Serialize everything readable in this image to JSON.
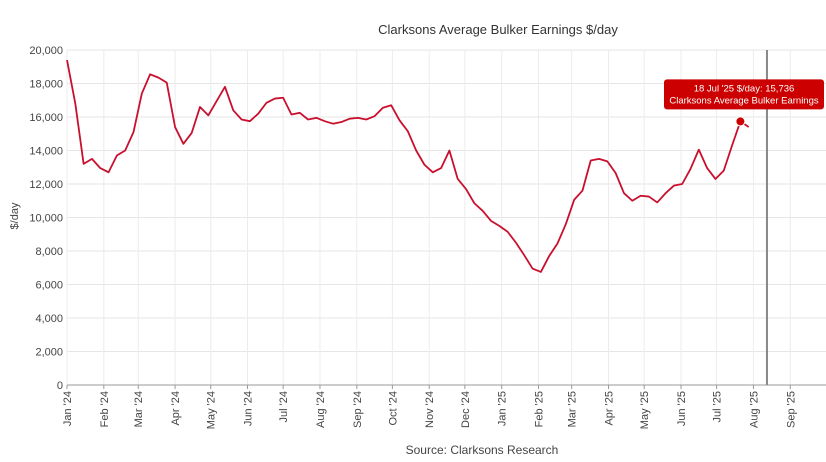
{
  "chart_data": {
    "type": "line",
    "title": "Clarksons Average Bulker Earnings $/day",
    "ylabel": "$/day",
    "xlabel": "",
    "source": "Source: Clarksons Research",
    "ylim": [
      0,
      20000
    ],
    "y_ticks": [
      0,
      2000,
      4000,
      6000,
      8000,
      10000,
      12000,
      14000,
      16000,
      18000,
      20000
    ],
    "y_tick_labels": [
      "0",
      "2,000",
      "4,000",
      "6,000",
      "8,000",
      "10,000",
      "12,000",
      "14,000",
      "16,000",
      "18,000",
      "20,000"
    ],
    "x_range_weeks": [
      0,
      91.3
    ],
    "x_ticks": [
      {
        "label": "Jan '24",
        "week": 0
      },
      {
        "label": "Feb '24",
        "week": 4.43
      },
      {
        "label": "Mar '24",
        "week": 8.57
      },
      {
        "label": "Apr '24",
        "week": 13
      },
      {
        "label": "May '24",
        "week": 17.29
      },
      {
        "label": "Jun '24",
        "week": 21.71
      },
      {
        "label": "Jul '24",
        "week": 26
      },
      {
        "label": "Aug '24",
        "week": 30.43
      },
      {
        "label": "Sep '24",
        "week": 34.86
      },
      {
        "label": "Oct '24",
        "week": 39.14
      },
      {
        "label": "Nov '24",
        "week": 43.57
      },
      {
        "label": "Dec '24",
        "week": 47.86
      },
      {
        "label": "Jan '25",
        "week": 52.29
      },
      {
        "label": "Feb '25",
        "week": 56.71
      },
      {
        "label": "Mar '25",
        "week": 60.71
      },
      {
        "label": "Apr '25",
        "week": 65.14
      },
      {
        "label": "May '25",
        "week": 69.43
      },
      {
        "label": "Jun '25",
        "week": 73.86
      },
      {
        "label": "Jul '25",
        "week": 78.14
      },
      {
        "label": "Aug '25",
        "week": 82.57
      },
      {
        "label": "Sep '25",
        "week": 87
      }
    ],
    "current_marker_week": 84.2,
    "series": [
      {
        "name": "Clarksons Average Bulker Earnings",
        "color": "#c8102e",
        "values": [
          19400,
          16800,
          13200,
          13500,
          12950,
          12700,
          13700,
          14000,
          15100,
          17400,
          18550,
          18350,
          18050,
          15400,
          14400,
          15050,
          16600,
          16100,
          16950,
          17800,
          16400,
          15850,
          15750,
          16200,
          16850,
          17100,
          17150,
          16150,
          16250,
          15850,
          15950,
          15750,
          15600,
          15700,
          15900,
          15950,
          15850,
          16050,
          16550,
          16700,
          15800,
          15150,
          14000,
          13150,
          12700,
          12950,
          14000,
          12300,
          11700,
          10850,
          10400,
          9800,
          9500,
          9150,
          8500,
          7750,
          6950,
          6750,
          7700,
          8450,
          9600,
          11050,
          11600,
          13400,
          13500,
          13350,
          12650,
          11450,
          11000,
          11300,
          11250,
          10900,
          11450,
          11900,
          12000,
          12900,
          14050,
          12950,
          12300,
          12800,
          14300,
          15736,
          15400
        ]
      }
    ],
    "tooltip": {
      "line1": "18 Jul '25 $/day: 15,736",
      "line2": "Clarksons Average Bulker Earnings",
      "point_index": 81,
      "color": "#cc0000"
    },
    "grid": true,
    "legend": "none"
  }
}
